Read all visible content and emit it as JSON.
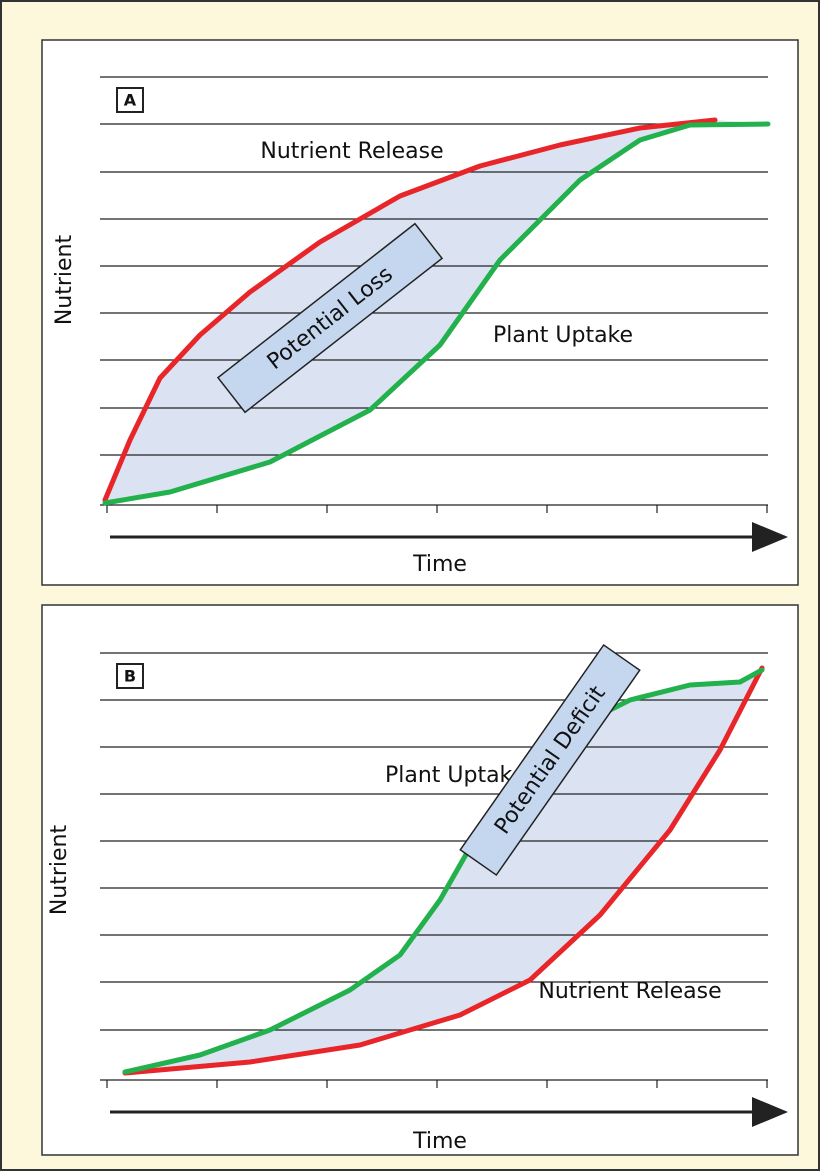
{
  "panels": [
    {
      "label": "A",
      "y_axis": "Nutrient",
      "x_axis": "Time",
      "release_label": "Nutrient Release",
      "uptake_label": "Plant Uptake",
      "region_label": "Potential Loss"
    },
    {
      "label": "B",
      "y_axis": "Nutrient",
      "x_axis": "Time",
      "release_label": "Nutrient Release",
      "uptake_label": "Plant Uptake",
      "region_label": "Potential Deficit"
    }
  ]
}
